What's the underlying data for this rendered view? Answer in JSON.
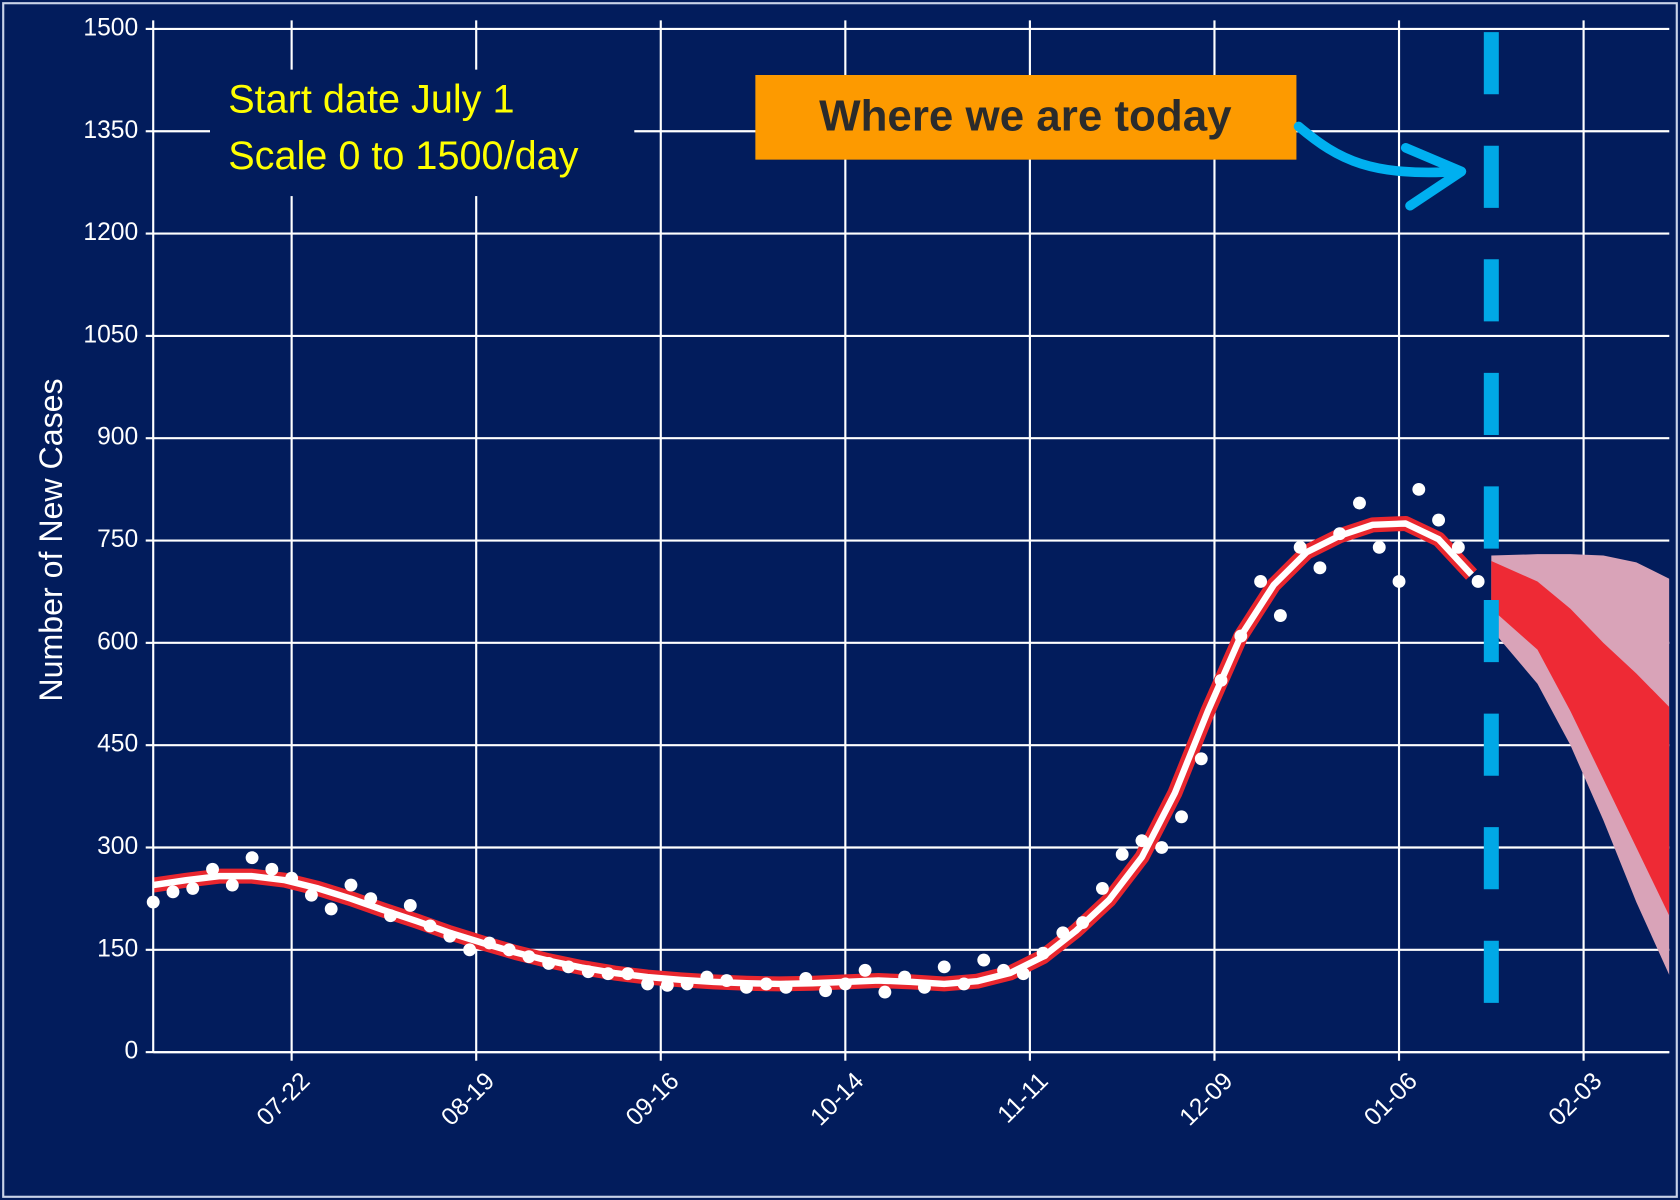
{
  "chart_data": {
    "type": "scatter",
    "ylabel": "Number of New Cases",
    "annotations": [
      "Start date July 1",
      "Scale 0 to 1500/day"
    ],
    "callout": "Where we are today",
    "today_x": 203,
    "xlim": [
      0,
      230
    ],
    "xticks": [
      {
        "value": 21,
        "label": "07-22"
      },
      {
        "value": 49,
        "label": "08-19"
      },
      {
        "value": 77,
        "label": "09-16"
      },
      {
        "value": 105,
        "label": "10-14"
      },
      {
        "value": 133,
        "label": "11-11"
      },
      {
        "value": 161,
        "label": "12-09"
      },
      {
        "value": 189,
        "label": "01-06"
      },
      {
        "value": 217,
        "label": "02-03"
      }
    ],
    "ylim": [
      0,
      1500
    ],
    "yticks": [
      0,
      150,
      300,
      450,
      600,
      750,
      900,
      1050,
      1200,
      1350,
      1500
    ],
    "grid": true,
    "points": {
      "color": "#ffffff",
      "x": [
        0,
        3,
        6,
        9,
        12,
        15,
        18,
        21,
        24,
        27,
        30,
        33,
        36,
        39,
        42,
        45,
        48,
        51,
        54,
        57,
        60,
        63,
        66,
        69,
        72,
        75,
        78,
        81,
        84,
        87,
        90,
        93,
        96,
        99,
        102,
        105,
        108,
        111,
        114,
        117,
        120,
        123,
        126,
        129,
        132,
        135,
        138,
        141,
        144,
        147,
        150,
        153,
        156,
        159,
        162,
        165,
        168,
        171,
        174,
        177,
        180,
        183,
        186,
        189,
        192,
        195,
        198,
        201
      ],
      "values": [
        220,
        235,
        240,
        268,
        245,
        285,
        268,
        255,
        230,
        210,
        245,
        225,
        200,
        215,
        185,
        170,
        150,
        160,
        150,
        140,
        130,
        125,
        118,
        115,
        115,
        100,
        98,
        100,
        110,
        105,
        95,
        100,
        95,
        108,
        90,
        100,
        120,
        88,
        110,
        95,
        125,
        100,
        135,
        120,
        115,
        145,
        175,
        190,
        240,
        290,
        310,
        300,
        345,
        430,
        545,
        610,
        690,
        640,
        740,
        710,
        760,
        805,
        740,
        690,
        825,
        780,
        740,
        690
      ]
    },
    "fit": {
      "color": "#ffffff",
      "band_color": "#e8262e",
      "x": [
        0,
        5,
        10,
        15,
        20,
        25,
        30,
        35,
        40,
        45,
        50,
        55,
        60,
        65,
        70,
        75,
        80,
        85,
        90,
        95,
        100,
        105,
        110,
        115,
        120,
        125,
        130,
        135,
        140,
        145,
        150,
        155,
        160,
        165,
        170,
        175,
        180,
        185,
        190,
        195,
        200
      ],
      "values": [
        245,
        252,
        258,
        258,
        252,
        240,
        225,
        208,
        192,
        175,
        160,
        146,
        134,
        124,
        116,
        110,
        106,
        103,
        101,
        100,
        101,
        103,
        105,
        103,
        100,
        104,
        116,
        140,
        178,
        223,
        286,
        380,
        500,
        610,
        685,
        733,
        757,
        773,
        775,
        752,
        700
      ]
    },
    "bands": [
      {
        "color": "#d9a3b8",
        "x": [
          203,
          210,
          215,
          220,
          225,
          230
        ],
        "upper": [
          728,
          730,
          730,
          728,
          718,
          694
        ],
        "lower": [
          620,
          540,
          450,
          340,
          220,
          113
        ]
      },
      {
        "color": "#ee2a35",
        "x": [
          203,
          210,
          215,
          220,
          225,
          230
        ],
        "upper": [
          720,
          690,
          650,
          600,
          555,
          506
        ],
        "lower": [
          650,
          590,
          500,
          400,
          300,
          200
        ]
      }
    ]
  }
}
